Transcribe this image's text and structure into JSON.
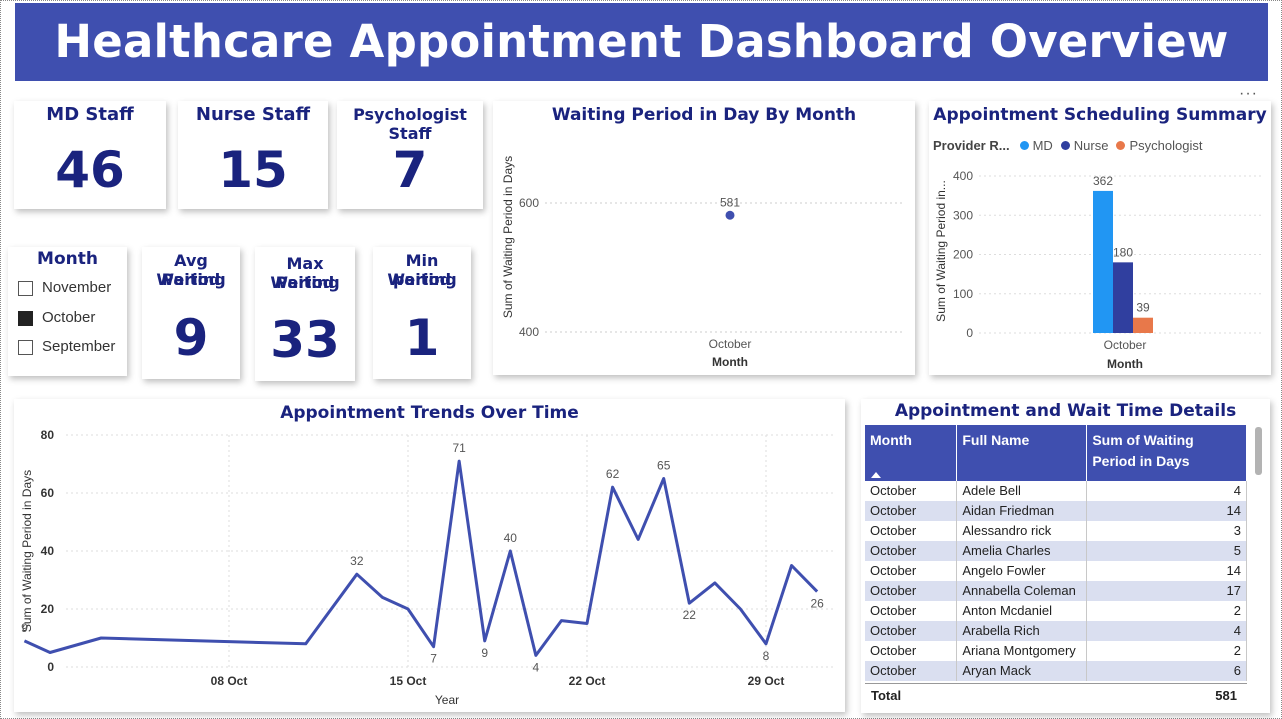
{
  "dashboard": {
    "title": "Healthcare Appointment Dashboard Overview"
  },
  "kpis": {
    "md_staff": {
      "label": "MD Staff",
      "value": "46"
    },
    "nurse_staff": {
      "label": "Nurse Staff",
      "value": "15"
    },
    "psychologist_staff": {
      "label": "Psychologist Staff",
      "value": "7"
    },
    "avg_waiting": {
      "label_line1": "Avg Waiting",
      "label_line2": "Period",
      "value": "9"
    },
    "max_waiting": {
      "label_line1": "Max Waiting",
      "label_line2": "Period",
      "value": "33"
    },
    "min_waiting": {
      "label_line1": "Min Waiting",
      "label_line2": "period",
      "value": "1"
    }
  },
  "month_slicer": {
    "title": "Month",
    "options": [
      {
        "label": "November",
        "checked": false
      },
      {
        "label": "October",
        "checked": true
      },
      {
        "label": "September",
        "checked": false
      }
    ]
  },
  "waiting_by_month": {
    "title": "Waiting Period in Day By Month",
    "ylabel": "Sum of Waiting Period in Days",
    "xlabel": "Month",
    "yticks": [
      "400",
      "600"
    ],
    "xtick": "October",
    "point_label": "581"
  },
  "scheduling_summary": {
    "title": "Appointment Scheduling Summary",
    "legend_title": "Provider R...",
    "legend": [
      {
        "label": "MD",
        "color": "#2196f3"
      },
      {
        "label": "Nurse",
        "color": "#303f9f"
      },
      {
        "label": "Psychologist",
        "color": "#e8784a"
      }
    ],
    "ylabel": "Sum of Waiting Period in...",
    "xlabel": "Month",
    "yticks": [
      "0",
      "100",
      "200",
      "300",
      "400"
    ],
    "xtick": "October",
    "bar_labels": [
      "362",
      "180",
      "39"
    ]
  },
  "trends": {
    "title": "Appointment Trends Over Time",
    "ylabel": "Sum of Waiting Period in Days",
    "xlabel": "Year",
    "yticks": [
      "0",
      "20",
      "40",
      "60",
      "80"
    ],
    "xticks": [
      "08 Oct",
      "15 Oct",
      "22 Oct",
      "29 Oct"
    ]
  },
  "details": {
    "title": "Appointment and Wait Time Details",
    "headers": {
      "month": "Month",
      "name": "Full Name",
      "sum_line1": "Sum of Waiting",
      "sum_line2": "Period in Days"
    },
    "rows": [
      {
        "month": "October",
        "name": "Adele Bell",
        "days": "4"
      },
      {
        "month": "October",
        "name": "Aidan Friedman",
        "days": "14"
      },
      {
        "month": "October",
        "name": "Alessandro rick",
        "days": "3"
      },
      {
        "month": "October",
        "name": "Amelia Charles",
        "days": "5"
      },
      {
        "month": "October",
        "name": "Angelo Fowler",
        "days": "14"
      },
      {
        "month": "October",
        "name": "Annabella Coleman",
        "days": "17"
      },
      {
        "month": "October",
        "name": "Anton Mcdaniel",
        "days": "2"
      },
      {
        "month": "October",
        "name": "Arabella Rich",
        "days": "4"
      },
      {
        "month": "October",
        "name": "Ariana Montgomery",
        "days": "2"
      },
      {
        "month": "October",
        "name": "Aryan Mack",
        "days": "6"
      }
    ],
    "total_label": "Total",
    "total_value": "581"
  },
  "chart_data": [
    {
      "type": "scatter",
      "title": "Waiting Period in Day By Month",
      "xlabel": "Month",
      "ylabel": "Sum of Waiting Period in Days",
      "categories": [
        "October"
      ],
      "values": [
        581
      ],
      "ylim": [
        400,
        620
      ],
      "color": "#3f4faf"
    },
    {
      "type": "bar",
      "title": "Appointment Scheduling Summary",
      "xlabel": "Month",
      "ylabel": "Sum of Waiting Period in...",
      "categories": [
        "October"
      ],
      "series": [
        {
          "name": "MD",
          "values": [
            362
          ],
          "color": "#2196f3"
        },
        {
          "name": "Nurse",
          "values": [
            180
          ],
          "color": "#303f9f"
        },
        {
          "name": "Psychologist",
          "values": [
            39
          ],
          "color": "#e8784a"
        }
      ],
      "ylim": [
        0,
        400
      ]
    },
    {
      "type": "line",
      "title": "Appointment Trends Over Time",
      "xlabel": "Year",
      "ylabel": "Sum of Waiting Period in Days",
      "ylim": [
        0,
        80
      ],
      "color": "#3f4faf",
      "points": [
        {
          "x": "2023-09-30",
          "y": 9,
          "label": "9"
        },
        {
          "x": "2023-10-01",
          "y": 5
        },
        {
          "x": "2023-10-03",
          "y": 10
        },
        {
          "x": "2023-10-11",
          "y": 8
        },
        {
          "x": "2023-10-13",
          "y": 32,
          "label": "32"
        },
        {
          "x": "2023-10-14",
          "y": 24
        },
        {
          "x": "2023-10-15",
          "y": 20
        },
        {
          "x": "2023-10-16",
          "y": 7,
          "label": "7"
        },
        {
          "x": "2023-10-17",
          "y": 71,
          "label": "71"
        },
        {
          "x": "2023-10-18",
          "y": 9,
          "label": "9"
        },
        {
          "x": "2023-10-19",
          "y": 40,
          "label": "40"
        },
        {
          "x": "2023-10-20",
          "y": 4,
          "label": "4"
        },
        {
          "x": "2023-10-21",
          "y": 16
        },
        {
          "x": "2023-10-22",
          "y": 15
        },
        {
          "x": "2023-10-23",
          "y": 62,
          "label": "62"
        },
        {
          "x": "2023-10-24",
          "y": 44
        },
        {
          "x": "2023-10-25",
          "y": 65,
          "label": "65"
        },
        {
          "x": "2023-10-26",
          "y": 22,
          "label": "22"
        },
        {
          "x": "2023-10-27",
          "y": 29
        },
        {
          "x": "2023-10-28",
          "y": 20
        },
        {
          "x": "2023-10-29",
          "y": 8,
          "label": "8"
        },
        {
          "x": "2023-10-30",
          "y": 35
        },
        {
          "x": "2023-10-31",
          "y": 26,
          "label": "26"
        }
      ]
    }
  ]
}
